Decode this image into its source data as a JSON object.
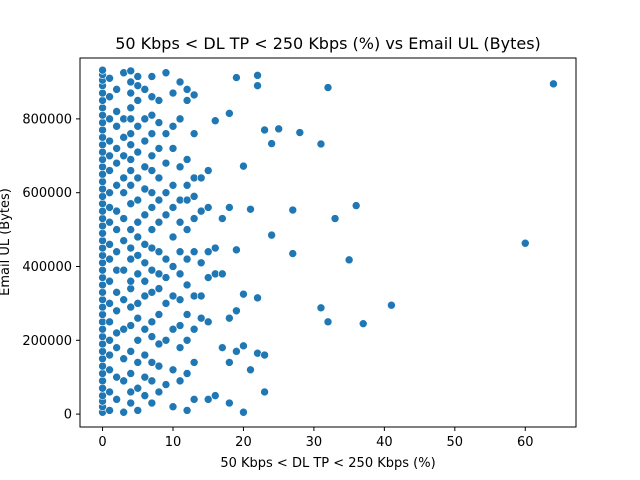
{
  "chart_data": {
    "type": "scatter",
    "title": "50 Kbps < DL TP < 250 Kbps (%) vs Email UL (Bytes)",
    "xlabel": "50 Kbps < DL TP < 250 Kbps (%)",
    "ylabel": "Email UL (Bytes)",
    "xlim": [
      -3.2,
      67.2
    ],
    "ylim": [
      -35000,
      965000
    ],
    "xticks": [
      0,
      10,
      20,
      30,
      40,
      50,
      60
    ],
    "yticks": [
      0,
      200000,
      400000,
      600000,
      800000
    ],
    "grid": false,
    "marker_color": "#1f77b4",
    "points": [
      [
        0,
        5000
      ],
      [
        0,
        20000
      ],
      [
        0,
        35000
      ],
      [
        0,
        50000
      ],
      [
        0,
        70000
      ],
      [
        0,
        90000
      ],
      [
        0,
        110000
      ],
      [
        0,
        130000
      ],
      [
        0,
        150000
      ],
      [
        0,
        170000
      ],
      [
        0,
        190000
      ],
      [
        0,
        210000
      ],
      [
        0,
        230000
      ],
      [
        0,
        250000
      ],
      [
        0,
        270000
      ],
      [
        0,
        290000
      ],
      [
        0,
        310000
      ],
      [
        0,
        330000
      ],
      [
        0,
        350000
      ],
      [
        0,
        370000
      ],
      [
        0,
        390000
      ],
      [
        0,
        410000
      ],
      [
        0,
        430000
      ],
      [
        0,
        450000
      ],
      [
        0,
        470000
      ],
      [
        0,
        490000
      ],
      [
        0,
        510000
      ],
      [
        0,
        530000
      ],
      [
        0,
        550000
      ],
      [
        0,
        570000
      ],
      [
        0,
        590000
      ],
      [
        0,
        610000
      ],
      [
        0,
        630000
      ],
      [
        0,
        650000
      ],
      [
        0,
        670000
      ],
      [
        0,
        690000
      ],
      [
        0,
        710000
      ],
      [
        0,
        730000
      ],
      [
        0,
        750000
      ],
      [
        0,
        770000
      ],
      [
        0,
        790000
      ],
      [
        0,
        810000
      ],
      [
        0,
        830000
      ],
      [
        0,
        850000
      ],
      [
        0,
        870000
      ],
      [
        0,
        890000
      ],
      [
        0,
        905000
      ],
      [
        0,
        920000
      ],
      [
        0,
        932000
      ],
      [
        1,
        10000
      ],
      [
        1,
        60000
      ],
      [
        1,
        120000
      ],
      [
        1,
        160000
      ],
      [
        1,
        200000
      ],
      [
        1,
        250000
      ],
      [
        1,
        300000
      ],
      [
        1,
        360000
      ],
      [
        1,
        420000
      ],
      [
        1,
        460000
      ],
      [
        1,
        520000
      ],
      [
        1,
        560000
      ],
      [
        1,
        600000
      ],
      [
        1,
        660000
      ],
      [
        1,
        700000
      ],
      [
        1,
        740000
      ],
      [
        1,
        800000
      ],
      [
        1,
        860000
      ],
      [
        1,
        910000
      ],
      [
        2,
        40000
      ],
      [
        2,
        100000
      ],
      [
        2,
        180000
      ],
      [
        2,
        220000
      ],
      [
        2,
        280000
      ],
      [
        2,
        330000
      ],
      [
        2,
        390000
      ],
      [
        2,
        440000
      ],
      [
        2,
        500000
      ],
      [
        2,
        550000
      ],
      [
        2,
        620000
      ],
      [
        2,
        680000
      ],
      [
        2,
        720000
      ],
      [
        2,
        780000
      ],
      [
        2,
        820000
      ],
      [
        2,
        880000
      ],
      [
        3,
        5000
      ],
      [
        3,
        90000
      ],
      [
        3,
        150000
      ],
      [
        3,
        230000
      ],
      [
        3,
        310000
      ],
      [
        3,
        390000
      ],
      [
        3,
        470000
      ],
      [
        3,
        530000
      ],
      [
        3,
        600000
      ],
      [
        3,
        640000
      ],
      [
        3,
        700000
      ],
      [
        3,
        750000
      ],
      [
        3,
        800000
      ],
      [
        3,
        925000
      ],
      [
        4,
        30000
      ],
      [
        4,
        60000
      ],
      [
        4,
        110000
      ],
      [
        4,
        170000
      ],
      [
        4,
        240000
      ],
      [
        4,
        290000
      ],
      [
        4,
        340000
      ],
      [
        4,
        360000
      ],
      [
        4,
        420000
      ],
      [
        4,
        450000
      ],
      [
        4,
        500000
      ],
      [
        4,
        570000
      ],
      [
        4,
        620000
      ],
      [
        4,
        660000
      ],
      [
        4,
        690000
      ],
      [
        4,
        730000
      ],
      [
        4,
        760000
      ],
      [
        4,
        800000
      ],
      [
        4,
        830000
      ],
      [
        4,
        870000
      ],
      [
        4,
        900000
      ],
      [
        4,
        930000
      ],
      [
        5,
        10000
      ],
      [
        5,
        70000
      ],
      [
        5,
        140000
      ],
      [
        5,
        200000
      ],
      [
        5,
        260000
      ],
      [
        5,
        300000
      ],
      [
        5,
        380000
      ],
      [
        5,
        430000
      ],
      [
        5,
        480000
      ],
      [
        5,
        520000
      ],
      [
        5,
        580000
      ],
      [
        5,
        640000
      ],
      [
        5,
        710000
      ],
      [
        5,
        780000
      ],
      [
        5,
        850000
      ],
      [
        5,
        890000
      ],
      [
        5,
        915000
      ],
      [
        6,
        50000
      ],
      [
        6,
        100000
      ],
      [
        6,
        160000
      ],
      [
        6,
        230000
      ],
      [
        6,
        320000
      ],
      [
        6,
        360000
      ],
      [
        6,
        410000
      ],
      [
        6,
        460000
      ],
      [
        6,
        540000
      ],
      [
        6,
        610000
      ],
      [
        6,
        670000
      ],
      [
        6,
        740000
      ],
      [
        6,
        800000
      ],
      [
        6,
        880000
      ],
      [
        7,
        30000
      ],
      [
        7,
        90000
      ],
      [
        7,
        140000
      ],
      [
        7,
        210000
      ],
      [
        7,
        250000
      ],
      [
        7,
        330000
      ],
      [
        7,
        390000
      ],
      [
        7,
        450000
      ],
      [
        7,
        500000
      ],
      [
        7,
        560000
      ],
      [
        7,
        600000
      ],
      [
        7,
        660000
      ],
      [
        7,
        700000
      ],
      [
        7,
        760000
      ],
      [
        7,
        810000
      ],
      [
        7,
        860000
      ],
      [
        7,
        915000
      ],
      [
        8,
        60000
      ],
      [
        8,
        130000
      ],
      [
        8,
        190000
      ],
      [
        8,
        270000
      ],
      [
        8,
        340000
      ],
      [
        8,
        380000
      ],
      [
        8,
        440000
      ],
      [
        8,
        520000
      ],
      [
        8,
        580000
      ],
      [
        8,
        640000
      ],
      [
        8,
        720000
      ],
      [
        8,
        790000
      ],
      [
        8,
        850000
      ],
      [
        9,
        80000
      ],
      [
        9,
        200000
      ],
      [
        9,
        300000
      ],
      [
        9,
        370000
      ],
      [
        9,
        420000
      ],
      [
        9,
        540000
      ],
      [
        9,
        600000
      ],
      [
        9,
        680000
      ],
      [
        9,
        760000
      ],
      [
        9,
        925000
      ],
      [
        10,
        20000
      ],
      [
        10,
        120000
      ],
      [
        10,
        230000
      ],
      [
        10,
        320000
      ],
      [
        10,
        400000
      ],
      [
        10,
        480000
      ],
      [
        10,
        560000
      ],
      [
        10,
        620000
      ],
      [
        10,
        720000
      ],
      [
        10,
        780000
      ],
      [
        10,
        870000
      ],
      [
        11,
        90000
      ],
      [
        11,
        180000
      ],
      [
        11,
        240000
      ],
      [
        11,
        310000
      ],
      [
        11,
        380000
      ],
      [
        11,
        440000
      ],
      [
        11,
        520000
      ],
      [
        11,
        580000
      ],
      [
        11,
        670000
      ],
      [
        11,
        800000
      ],
      [
        11,
        900000
      ],
      [
        12,
        10000
      ],
      [
        12,
        110000
      ],
      [
        12,
        200000
      ],
      [
        12,
        270000
      ],
      [
        12,
        350000
      ],
      [
        12,
        420000
      ],
      [
        12,
        500000
      ],
      [
        12,
        580000
      ],
      [
        12,
        620000
      ],
      [
        12,
        690000
      ],
      [
        12,
        850000
      ],
      [
        12,
        880000
      ],
      [
        13,
        40000
      ],
      [
        13,
        140000
      ],
      [
        13,
        230000
      ],
      [
        13,
        320000
      ],
      [
        13,
        440000
      ],
      [
        13,
        530000
      ],
      [
        13,
        590000
      ],
      [
        13,
        640000
      ],
      [
        13,
        760000
      ],
      [
        13,
        865000
      ],
      [
        14,
        260000
      ],
      [
        14,
        320000
      ],
      [
        14,
        410000
      ],
      [
        14,
        550000
      ],
      [
        14,
        640000
      ],
      [
        15,
        40000
      ],
      [
        15,
        250000
      ],
      [
        15,
        370000
      ],
      [
        15,
        440000
      ],
      [
        15,
        560000
      ],
      [
        15,
        660000
      ],
      [
        16,
        50000
      ],
      [
        16,
        380000
      ],
      [
        16,
        450000
      ],
      [
        16,
        795000
      ],
      [
        17,
        180000
      ],
      [
        17,
        380000
      ],
      [
        17,
        530000
      ],
      [
        18,
        30000
      ],
      [
        18,
        140000
      ],
      [
        18,
        260000
      ],
      [
        18,
        560000
      ],
      [
        18,
        815000
      ],
      [
        19,
        170000
      ],
      [
        19,
        280000
      ],
      [
        19,
        445000
      ],
      [
        19,
        912000
      ],
      [
        20,
        5000
      ],
      [
        20,
        185000
      ],
      [
        20,
        325000
      ],
      [
        20,
        672000
      ],
      [
        21,
        120000
      ],
      [
        21,
        555000
      ],
      [
        22,
        165000
      ],
      [
        22,
        315000
      ],
      [
        22,
        890000
      ],
      [
        22,
        918000
      ],
      [
        23,
        60000
      ],
      [
        23,
        160000
      ],
      [
        23,
        770000
      ],
      [
        24,
        485000
      ],
      [
        24,
        733000
      ],
      [
        25,
        773000
      ],
      [
        27,
        435000
      ],
      [
        27,
        553000
      ],
      [
        28,
        763000
      ],
      [
        31,
        288000
      ],
      [
        31,
        732000
      ],
      [
        32,
        250000
      ],
      [
        32,
        885000
      ],
      [
        33,
        530000
      ],
      [
        35,
        418000
      ],
      [
        36,
        565000
      ],
      [
        37,
        245000
      ],
      [
        41,
        295000
      ],
      [
        60,
        463000
      ],
      [
        64,
        895000
      ]
    ]
  }
}
